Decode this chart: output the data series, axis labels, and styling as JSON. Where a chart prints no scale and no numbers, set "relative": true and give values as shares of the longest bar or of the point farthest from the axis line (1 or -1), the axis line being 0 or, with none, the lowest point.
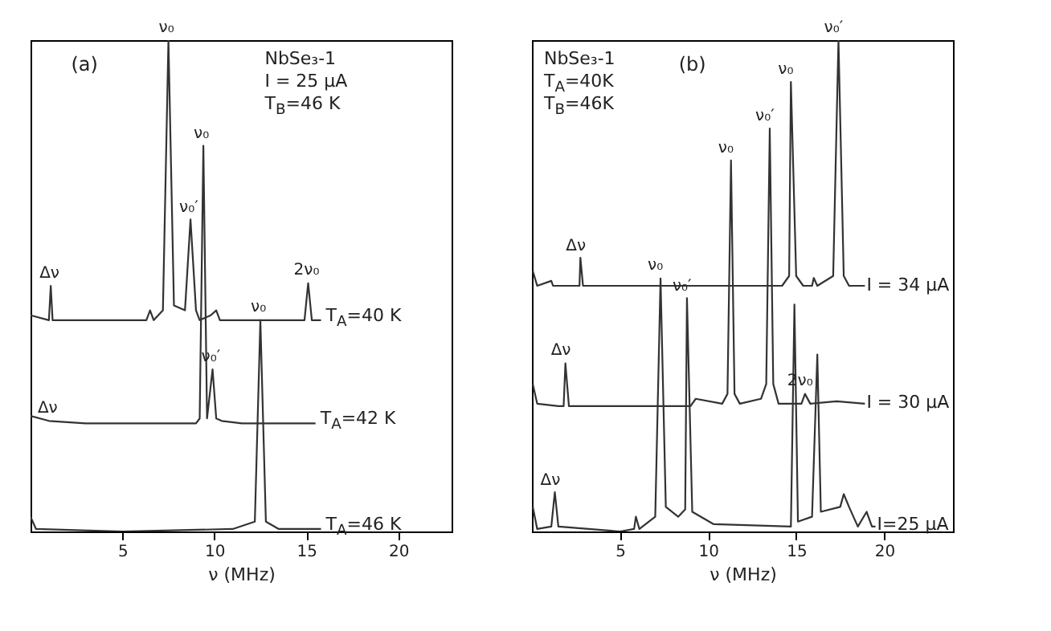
{
  "chart_data": [
    {
      "type": "line",
      "title": "(a)",
      "xlabel": "ν (MHz)",
      "relative": true,
      "xlim": [
        0,
        22.9
      ],
      "xticks": [
        5,
        10,
        15,
        20
      ],
      "annotations": [
        "NbSe₃-1",
        "I = 25 μA",
        "T$_{B}$=46 K",
        {
          "text": "ν₀",
          "x": 7.5,
          "y": 1.0
        },
        {
          "text": "ν₀",
          "x": 9.4,
          "y": 0.785
        },
        {
          "text": "ν₀′",
          "x": 8.7,
          "y": 0.635
        },
        {
          "text": "Δν",
          "x": 1.1,
          "y": 0.5
        },
        {
          "text": "2ν₀",
          "x": 15.1,
          "y": 0.505
        },
        {
          "text": "Δν",
          "x": 1,
          "y": 0.225
        },
        {
          "text": "ν₀′",
          "x": 9.9,
          "y": 0.33
        },
        {
          "text": "ν₀",
          "x": 12.5,
          "y": 0.43
        }
      ],
      "series": [
        {
          "name": "T$_{A}$=40 K",
          "color": "#333333",
          "x": [
            0,
            1.0,
            1.1,
            1.2,
            6.3,
            6.5,
            6.7,
            7.2,
            7.5,
            7.8,
            8.4,
            8.7,
            9.0,
            9.2,
            9.8,
            10.1,
            10.3,
            14.9,
            15.1,
            15.3,
            15.8
          ],
          "values": [
            0.44,
            0.43,
            0.5,
            0.43,
            0.43,
            0.45,
            0.43,
            0.45,
            1.0,
            0.46,
            0.45,
            0.635,
            0.45,
            0.43,
            0.44,
            0.45,
            0.43,
            0.43,
            0.505,
            0.43,
            0.43
          ]
        },
        {
          "name": "T$_{A}$=42 K",
          "color": "#333333",
          "x": [
            0,
            1,
            3,
            9.0,
            9.2,
            9.4,
            9.6,
            9.9,
            10.1,
            10.4,
            11.5,
            15.5
          ],
          "values": [
            0.235,
            0.225,
            0.22,
            0.22,
            0.23,
            0.785,
            0.23,
            0.33,
            0.23,
            0.225,
            0.22,
            0.22
          ]
        },
        {
          "name": "T$_{A}$=46 K",
          "color": "#333333",
          "x": [
            0,
            0.3,
            5,
            11,
            12.2,
            12.5,
            12.8,
            13.5,
            15.8
          ],
          "values": [
            0.03,
            0.005,
            0,
            0.005,
            0.02,
            0.43,
            0.02,
            0.005,
            0.005
          ]
        }
      ]
    },
    {
      "type": "line",
      "title": "(b)",
      "xlabel": "ν (MHz)",
      "relative": true,
      "xlim": [
        0,
        23.9
      ],
      "xticks": [
        5,
        10,
        15,
        20
      ],
      "annotations": [
        "NbSe₃-1",
        "T$_{A}$=40K",
        "T$_{B}$=46K",
        {
          "text": "Δν",
          "x": 2.75,
          "y": 0.557
        },
        {
          "text": "ν₀",
          "x": 11.3,
          "y": 0.755
        },
        {
          "text": "ν₀′",
          "x": 13.5,
          "y": 0.82
        },
        {
          "text": "ν₀",
          "x": 14.7,
          "y": 0.915
        },
        {
          "text": "ν₀′",
          "x": 17.4,
          "y": 1.0
        },
        {
          "text": "ν₀",
          "x": 7.3,
          "y": 0.515
        },
        {
          "text": "Δν",
          "x": 1.9,
          "y": 0.342
        },
        {
          "text": "ν₀′",
          "x": 8.8,
          "y": 0.475
        },
        {
          "text": "2ν₀",
          "x": 15.5,
          "y": 0.28
        },
        {
          "text": "Δν",
          "x": 1.3,
          "y": 0.08
        }
      ],
      "series": [
        {
          "name": "I = 34 μA",
          "color": "#333333",
          "x": [
            0.05,
            0.3,
            1.1,
            1.2,
            2.7,
            2.75,
            2.9,
            14.2,
            14.6,
            14.7,
            15,
            15.4,
            15.9,
            16,
            16.2,
            17.1,
            17.4,
            17.7,
            18,
            18.9
          ],
          "values": [
            0.53,
            0.5,
            0.51,
            0.5,
            0.5,
            0.557,
            0.5,
            0.5,
            0.52,
            0.915,
            0.52,
            0.5,
            0.5,
            0.516,
            0.5,
            0.52,
            1.0,
            0.52,
            0.5,
            0.5
          ]
        },
        {
          "name": "I = 30 μA",
          "color": "#333333",
          "x": [
            0.05,
            0.3,
            1.5,
            1.8,
            1.9,
            2.1,
            9,
            9.3,
            10.8,
            11.1,
            11.3,
            11.5,
            11.8,
            13.0,
            13.3,
            13.5,
            13.7,
            14,
            15.3,
            15.5,
            15.8,
            17.3,
            18.9
          ],
          "values": [
            0.3,
            0.26,
            0.255,
            0.255,
            0.342,
            0.255,
            0.255,
            0.27,
            0.26,
            0.28,
            0.755,
            0.28,
            0.26,
            0.27,
            0.3,
            0.82,
            0.3,
            0.26,
            0.26,
            0.28,
            0.26,
            0.265,
            0.26
          ]
        },
        {
          "name": "I=25 μA",
          "color": "#333333",
          "x": [
            0.05,
            0.3,
            1.1,
            1.3,
            1.5,
            5,
            5.8,
            5.9,
            6.1,
            7,
            7.3,
            7.6,
            8.3,
            8.7,
            8.8,
            9.1,
            10.3,
            14.7,
            14.9,
            15.1,
            15.9,
            16.2,
            16.4,
            17.5,
            17.7,
            18,
            18.5,
            19.0,
            19.3,
            19.5
          ],
          "values": [
            0.05,
            0.005,
            0.01,
            0.08,
            0.01,
            0,
            0.005,
            0.03,
            0.005,
            0.03,
            0.515,
            0.05,
            0.03,
            0.045,
            0.475,
            0.04,
            0.015,
            0.01,
            0.462,
            0.02,
            0.03,
            0.36,
            0.04,
            0.05,
            0.076,
            0.05,
            0.01,
            0.04,
            0.01,
            0.01
          ]
        }
      ]
    }
  ]
}
